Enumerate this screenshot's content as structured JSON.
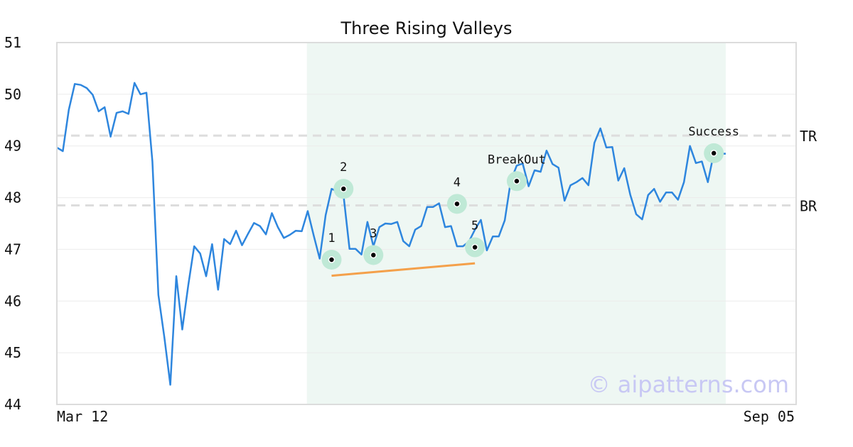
{
  "chart_data": {
    "type": "line",
    "title": "Three Rising Valleys",
    "watermark": "© aipatterns.com",
    "xlabel": "",
    "ylabel": "",
    "x_labels": {
      "start": "Mar 12",
      "end": "Sep 05"
    },
    "ylim": [
      44,
      51
    ],
    "y_ticks": [
      44,
      45,
      46,
      47,
      48,
      49,
      50,
      51
    ],
    "grid": true,
    "series": [
      {
        "color": "#2e86de",
        "values": [
          48.97,
          48.9,
          49.7,
          50.2,
          50.18,
          50.12,
          49.99,
          49.67,
          49.75,
          49.18,
          49.64,
          49.67,
          49.62,
          50.22,
          50.0,
          50.03,
          48.7,
          46.12,
          45.3,
          44.38,
          46.48,
          45.45,
          46.3,
          47.06,
          46.92,
          46.48,
          47.1,
          46.22,
          47.2,
          47.1,
          47.36,
          47.08,
          47.3,
          47.51,
          47.45,
          47.29,
          47.7,
          47.43,
          47.22,
          47.28,
          47.36,
          47.35,
          47.74,
          47.27,
          46.82,
          47.66,
          48.17,
          48.12,
          48.04,
          47.01,
          47.01,
          46.9,
          47.53,
          47.06,
          47.43,
          47.5,
          47.49,
          47.53,
          47.16,
          47.06,
          47.38,
          47.45,
          47.82,
          47.82,
          47.89,
          47.43,
          47.45,
          47.06,
          47.06,
          47.15,
          47.38,
          47.57,
          46.98,
          47.25,
          47.25,
          47.56,
          48.32,
          48.62,
          48.66,
          48.22,
          48.53,
          48.5,
          48.91,
          48.65,
          48.58,
          47.94,
          48.24,
          48.3,
          48.38,
          48.24,
          49.06,
          49.34,
          48.97,
          48.98,
          48.33,
          48.57,
          48.06,
          47.68,
          47.58,
          48.05,
          48.17,
          47.92,
          48.1,
          48.1,
          47.96,
          48.3,
          49.0,
          48.67,
          48.7,
          48.3,
          48.86,
          48.85,
          48.85
        ]
      }
    ],
    "shaded_region": {
      "from_index": 44,
      "to_index": 112,
      "color": "#eef7f3"
    },
    "levels": [
      {
        "label": "TR",
        "value": 49.2,
        "color": "#dddddd"
      },
      {
        "label": "BR",
        "value": 47.85,
        "color": "#dddddd"
      }
    ],
    "trendline": {
      "from_index": 46,
      "from_value": 46.49,
      "to_index": 70,
      "to_value": 46.73,
      "color": "#f4a04a"
    },
    "annotations": [
      {
        "label": "1",
        "index": 46,
        "value": 46.8,
        "label_pos": "above"
      },
      {
        "label": "2",
        "index": 48,
        "value": 48.17,
        "label_pos": "above"
      },
      {
        "label": "3",
        "index": 53,
        "value": 46.89,
        "label_pos": "above"
      },
      {
        "label": "4",
        "index": 67,
        "value": 47.88,
        "label_pos": "above"
      },
      {
        "label": "5",
        "index": 70,
        "value": 47.04,
        "label_pos": "above"
      },
      {
        "label": "BreakOut",
        "index": 77,
        "value": 48.32,
        "label_pos": "above"
      },
      {
        "label": "Success",
        "index": 110,
        "value": 48.86,
        "label_pos": "above"
      }
    ],
    "marker_halo_color": "#bfe9d6"
  }
}
